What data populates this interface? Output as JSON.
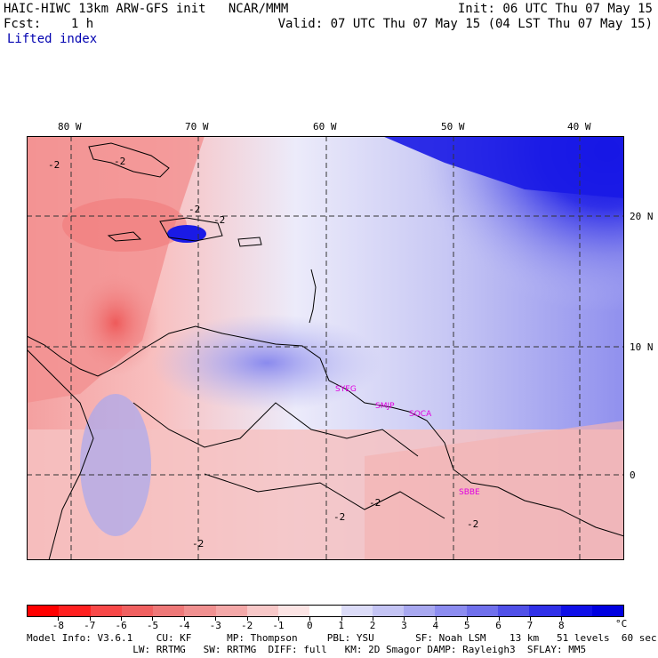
{
  "header": {
    "title": "HAIC-HIWC 13km ARW-GFS init   NCAR/MMM",
    "init": "Init: 06 UTC Thu 07 May 15",
    "fcst": "Fcst:    1 h",
    "valid": "Valid: 07 UTC Thu 07 May 15 (04 LST Thu 07 May 15)",
    "field": "Lifted index"
  },
  "axes": {
    "lon_labels": [
      "80 W",
      "70 W",
      "60 W",
      "50 W",
      "40 W"
    ],
    "lat_labels": [
      "20 N",
      "10 N",
      "0"
    ]
  },
  "stations": [
    "SYEG",
    "SMJP",
    "SOCA",
    "SBBE"
  ],
  "contour_labels": [
    "-2",
    "-2",
    "-2",
    "-2",
    "-2",
    "-2",
    "-2",
    "-2"
  ],
  "colorbar": {
    "unit": "°C",
    "labels": [
      "-8",
      "-7",
      "-6",
      "-5",
      "-4",
      "-3",
      "-2",
      "-1",
      "0",
      "1",
      "2",
      "3",
      "4",
      "5",
      "6",
      "7",
      "8"
    ],
    "colors": [
      "#ff0000",
      "#ff2020",
      "#f84848",
      "#f06060",
      "#ee7878",
      "#f09090",
      "#f4a8a8",
      "#f8c8c8",
      "#fce4e4",
      "#ffffff",
      "#dcdcf8",
      "#c4c4f4",
      "#a8a8f0",
      "#8c8cf0",
      "#7070ec",
      "#5050e8",
      "#3030e8",
      "#1010e8",
      "#0000e0"
    ]
  },
  "footer": {
    "line1": "Model Info: V3.6.1    CU: KF      MP: Thompson     PBL: YSU       SF: Noah LSM    13 km   51 levels  60 sec",
    "line2": "                  LW: RRTMG   SW: RRTMG  DIFF: full   KM: 2D Smagor DAMP: Rayleigh3  SFLAY: MM5"
  }
}
